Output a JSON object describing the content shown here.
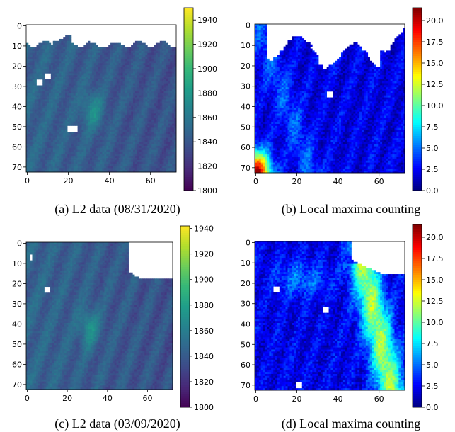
{
  "chart_data": [
    {
      "type": "heatmap",
      "caption": "(a) L2 data (08/31/2020)",
      "grid_size": 73,
      "xticks": [
        0,
        20,
        40,
        60
      ],
      "yticks": [
        0,
        10,
        20,
        30,
        40,
        50,
        60,
        70
      ],
      "colormap": "viridis",
      "colorbar_range": [
        1800,
        1950
      ],
      "colorbar_ticks": [
        1800,
        1820,
        1840,
        1860,
        1880,
        1900,
        1920,
        1940
      ],
      "base_value": 1848,
      "plume": {
        "center_x": 32,
        "center_y": 42,
        "peak": 1878
      },
      "white_region": "top edge, y 0-10",
      "white_spots": [
        {
          "x": 10,
          "y": 25
        },
        {
          "x": 6,
          "y": 28
        },
        {
          "x": 22,
          "y": 51
        }
      ]
    },
    {
      "type": "heatmap",
      "caption": "(b) Local maxima counting",
      "grid_size": 73,
      "xticks": [
        0,
        20,
        40,
        60
      ],
      "yticks": [
        0,
        10,
        20,
        30,
        40,
        50,
        60,
        70
      ],
      "colormap": "jet",
      "colorbar_range": [
        0,
        21.5
      ],
      "colorbar_ticks": [
        0.0,
        2.5,
        5.0,
        7.5,
        10.0,
        12.5,
        15.0,
        17.5,
        20.0
      ],
      "hotspot": {
        "x": 1,
        "y": 72,
        "value": 21
      },
      "white_region": "top edge, y 0-20",
      "white_spots": [
        {
          "x": 36,
          "y": 34
        }
      ]
    },
    {
      "type": "heatmap",
      "caption": "(c) L2 data (03/09/2020)",
      "grid_size": 73,
      "xticks": [
        0,
        20,
        40,
        60
      ],
      "yticks": [
        0,
        10,
        20,
        30,
        40,
        50,
        60,
        70
      ],
      "colormap": "viridis",
      "colorbar_range": [
        1800,
        1942
      ],
      "colorbar_ticks": [
        1800,
        1820,
        1840,
        1860,
        1880,
        1900,
        1920,
        1940
      ],
      "base_value": 1846,
      "plume": {
        "center_x": 31,
        "center_y": 42,
        "peak": 1876
      },
      "white_region": "top-right corner",
      "white_spots": [
        {
          "x": 10,
          "y": 23
        },
        {
          "x": 2,
          "y": 7
        }
      ]
    },
    {
      "type": "heatmap",
      "caption": "(d) Local maxima counting",
      "grid_size": 73,
      "xticks": [
        0,
        20,
        40,
        60
      ],
      "yticks": [
        0,
        10,
        20,
        30,
        40,
        50,
        60,
        70
      ],
      "colormap": "jet",
      "colorbar_range": [
        0,
        21.5
      ],
      "colorbar_ticks": [
        0.0,
        2.5,
        5.0,
        7.5,
        10.0,
        12.5,
        15.0,
        17.5,
        20.0
      ],
      "band": "bright streak along the right side",
      "white_region": "top-right corner",
      "white_spots": [
        {
          "x": 10,
          "y": 23
        },
        {
          "x": 34,
          "y": 33
        },
        {
          "x": 21,
          "y": 70
        }
      ]
    }
  ]
}
